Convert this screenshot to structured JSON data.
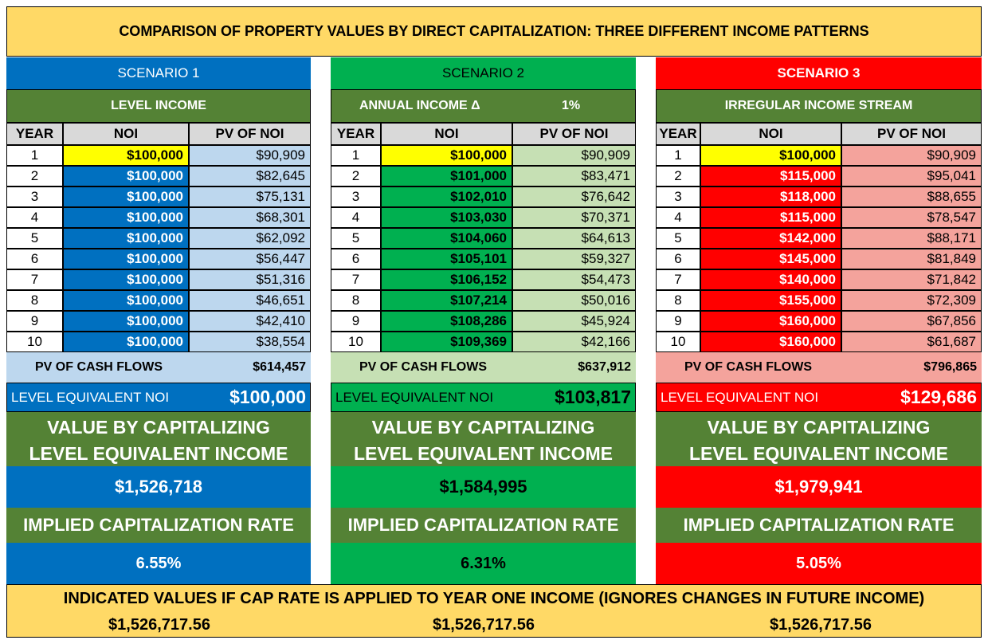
{
  "title": "COMPARISON OF PROPERTY VALUES BY DIRECT CAPITALIZATION: THREE DIFFERENT INCOME PATTERNS",
  "scenarios": [
    {
      "name": "SCENARIO 1",
      "subheader": "LEVEL INCOME",
      "columns": [
        "YEAR",
        "NOI",
        "PV OF NOI"
      ],
      "rows": [
        [
          "1",
          "$100,000",
          "$90,909"
        ],
        [
          "2",
          "$100,000",
          "$82,645"
        ],
        [
          "3",
          "$100,000",
          "$75,131"
        ],
        [
          "4",
          "$100,000",
          "$68,301"
        ],
        [
          "5",
          "$100,000",
          "$62,092"
        ],
        [
          "6",
          "$100,000",
          "$56,447"
        ],
        [
          "7",
          "$100,000",
          "$51,316"
        ],
        [
          "8",
          "$100,000",
          "$46,651"
        ],
        [
          "9",
          "$100,000",
          "$42,410"
        ],
        [
          "10",
          "$100,000",
          "$38,554"
        ]
      ],
      "pv_label": "PV OF CASH FLOWS",
      "pv_value": "$614,457",
      "level_label": "LEVEL EQUIVALENT NOI",
      "level_value": "$100,000",
      "value_label": [
        "VALUE BY CAPITALIZING",
        "LEVEL EQUIVALENT INCOME"
      ],
      "value": "$1,526,718",
      "rate_label": "IMPLIED CAPITALIZATION RATE",
      "rate": "6.55%"
    },
    {
      "name": "SCENARIO 2",
      "subheader": "ANNUAL INCOME Δ",
      "subheader_value": "1%",
      "columns": [
        "YEAR",
        "NOI",
        "PV OF NOI"
      ],
      "rows": [
        [
          "1",
          "$100,000",
          "$90,909"
        ],
        [
          "2",
          "$101,000",
          "$83,471"
        ],
        [
          "3",
          "$102,010",
          "$76,642"
        ],
        [
          "4",
          "$103,030",
          "$70,371"
        ],
        [
          "5",
          "$104,060",
          "$64,613"
        ],
        [
          "6",
          "$105,101",
          "$59,327"
        ],
        [
          "7",
          "$106,152",
          "$54,473"
        ],
        [
          "8",
          "$107,214",
          "$50,016"
        ],
        [
          "9",
          "$108,286",
          "$45,924"
        ],
        [
          "10",
          "$109,369",
          "$42,166"
        ]
      ],
      "pv_label": "PV OF CASH FLOWS",
      "pv_value": "$637,912",
      "level_label": "LEVEL EQUIVALENT NOI",
      "level_value": "$103,817",
      "value_label": [
        "VALUE BY CAPITALIZING",
        "LEVEL EQUIVALENT INCOME"
      ],
      "value": "$1,584,995",
      "rate_label": "IMPLIED CAPITALIZATION RATE",
      "rate": "6.31%"
    },
    {
      "name": "SCENARIO 3",
      "subheader": "IRREGULAR INCOME STREAM",
      "columns": [
        "YEAR",
        "NOI",
        "PV OF NOI"
      ],
      "rows": [
        [
          "1",
          "$100,000",
          "$90,909"
        ],
        [
          "2",
          "$115,000",
          "$95,041"
        ],
        [
          "3",
          "$118,000",
          "$88,655"
        ],
        [
          "4",
          "$115,000",
          "$78,547"
        ],
        [
          "5",
          "$142,000",
          "$88,171"
        ],
        [
          "6",
          "$145,000",
          "$81,849"
        ],
        [
          "7",
          "$140,000",
          "$71,842"
        ],
        [
          "8",
          "$155,000",
          "$72,309"
        ],
        [
          "9",
          "$160,000",
          "$67,856"
        ],
        [
          "10",
          "$160,000",
          "$61,687"
        ]
      ],
      "pv_label": "PV OF CASH FLOWS",
      "pv_value": "$796,865",
      "level_label": "LEVEL EQUIVALENT NOI",
      "level_value": "$129,686",
      "value_label": [
        "VALUE BY CAPITALIZING",
        "LEVEL EQUIVALENT INCOME"
      ],
      "value": "$1,979,941",
      "rate_label": "IMPLIED CAPITALIZATION RATE",
      "rate": "5.05%"
    }
  ],
  "footer": {
    "text": "INDICATED VALUES IF CAP RATE IS APPLIED TO YEAR ONE INCOME (IGNORES CHANGES IN FUTURE INCOME)",
    "values": [
      "$1,526,717.56",
      "$1,526,717.56",
      "$1,526,717.56"
    ]
  }
}
